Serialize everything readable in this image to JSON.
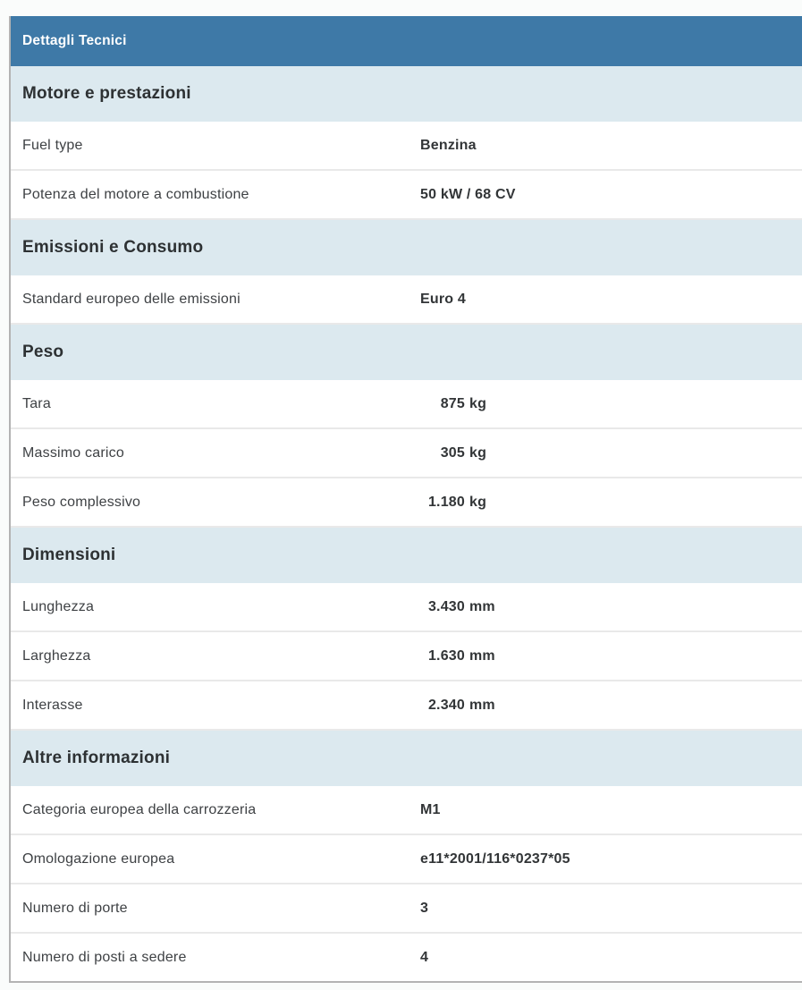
{
  "theme": {
    "accent_color": "#3e79a7",
    "section_bg": "#dce9ef",
    "page_bg": "#fafcfb",
    "divider_color": "#e9e9e9",
    "border_color": "#b3b3b3",
    "label_color": "#3e4144",
    "value_color": "#323537",
    "section_title_color": "#2d3133"
  },
  "panel": {
    "title": "Dettagli Tecnici",
    "sections": [
      {
        "title": "Motore e prestazioni",
        "rows": [
          {
            "label": "Fuel type",
            "value": "Benzina"
          },
          {
            "label": "Potenza del motore a combustione",
            "value": "50 kW / 68 CV"
          }
        ]
      },
      {
        "title": "Emissioni e Consumo",
        "rows": [
          {
            "label": "Standard europeo delle emissioni",
            "value": "Euro 4"
          }
        ]
      },
      {
        "title": "Peso",
        "rows": [
          {
            "label": "Tara",
            "num": "875",
            "unit": "kg"
          },
          {
            "label": "Massimo carico",
            "num": "305",
            "unit": "kg"
          },
          {
            "label": "Peso complessivo",
            "num": "1.180",
            "unit": "kg"
          }
        ]
      },
      {
        "title": "Dimensioni",
        "rows": [
          {
            "label": "Lunghezza",
            "num": "3.430",
            "unit": "mm"
          },
          {
            "label": "Larghezza",
            "num": "1.630",
            "unit": "mm"
          },
          {
            "label": "Interasse",
            "num": "2.340",
            "unit": "mm"
          }
        ]
      },
      {
        "title": "Altre informazioni",
        "rows": [
          {
            "label": "Categoria europea della carrozzeria",
            "value": "M1"
          },
          {
            "label": "Omologazione europea",
            "value": "e11*2001/116*0237*05"
          },
          {
            "label": "Numero di porte",
            "value": "3"
          },
          {
            "label": "Numero di posti a sedere",
            "value": "4"
          }
        ]
      }
    ]
  }
}
